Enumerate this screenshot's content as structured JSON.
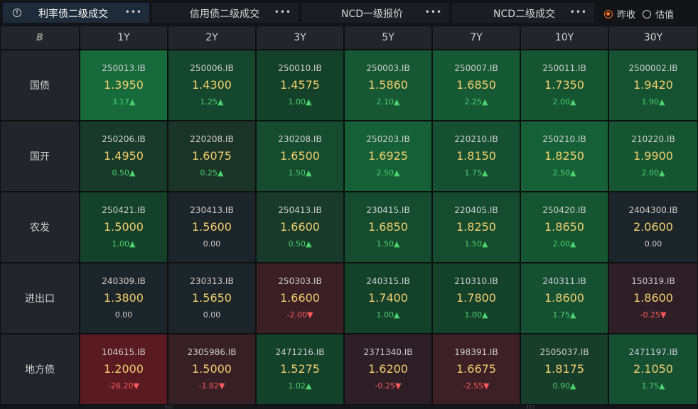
{
  "tabs": [
    {
      "label": "利率债二级成交",
      "active": true
    },
    {
      "label": "信用债二级成交",
      "active": false
    },
    {
      "label": "NCD一级报价",
      "active": false
    },
    {
      "label": "NCD二级成交",
      "active": false
    }
  ],
  "more_label": "•••",
  "info_glyph": "!",
  "radio": {
    "options": [
      {
        "label": "昨收",
        "selected": true
      },
      {
        "label": "估值",
        "selected": false
      }
    ]
  },
  "corner_logo": "B",
  "columns": [
    "1Y",
    "2Y",
    "3Y",
    "5Y",
    "7Y",
    "10Y",
    "30Y"
  ],
  "rows": [
    {
      "label": "国债",
      "cells": [
        {
          "code": "250013.IB",
          "value": "1.3950",
          "change": "3.17▲",
          "dir": "up",
          "bg": "#166a3c"
        },
        {
          "code": "250006.IB",
          "value": "1.4300",
          "change": "1.25▲",
          "dir": "up",
          "bg": "#14472d"
        },
        {
          "code": "250010.IB",
          "value": "1.4575",
          "change": "1.00▲",
          "dir": "up",
          "bg": "#14412a"
        },
        {
          "code": "250003.IB",
          "value": "1.5860",
          "change": "2.10▲",
          "dir": "up",
          "bg": "#165834"
        },
        {
          "code": "250007.IB",
          "value": "1.6850",
          "change": "2.25▲",
          "dir": "up",
          "bg": "#165a35"
        },
        {
          "code": "250011.IB",
          "value": "1.7350",
          "change": "2.00▲",
          "dir": "up",
          "bg": "#155532"
        },
        {
          "code": "2500002.IB",
          "value": "1.9420",
          "change": "1.90▲",
          "dir": "up",
          "bg": "#155231"
        }
      ]
    },
    {
      "label": "国开",
      "cells": [
        {
          "code": "250206.IB",
          "value": "1.4950",
          "change": "0.50▲",
          "dir": "up",
          "bg": "#183a2a"
        },
        {
          "code": "220208.IB",
          "value": "1.6075",
          "change": "0.25▲",
          "dir": "up",
          "bg": "#1a3428"
        },
        {
          "code": "230208.IB",
          "value": "1.6500",
          "change": "1.50▲",
          "dir": "up",
          "bg": "#154c2f"
        },
        {
          "code": "250203.IB",
          "value": "1.6925",
          "change": "2.50▲",
          "dir": "up",
          "bg": "#166038"
        },
        {
          "code": "220210.IB",
          "value": "1.8150",
          "change": "1.75▲",
          "dir": "up",
          "bg": "#155032"
        },
        {
          "code": "250210.IB",
          "value": "1.8250",
          "change": "2.50▲",
          "dir": "up",
          "bg": "#166038"
        },
        {
          "code": "210220.IB",
          "value": "1.9900",
          "change": "2.00▲",
          "dir": "up",
          "bg": "#155532"
        }
      ]
    },
    {
      "label": "农发",
      "cells": [
        {
          "code": "250421.IB",
          "value": "1.5000",
          "change": "1.00▲",
          "dir": "up",
          "bg": "#14412a"
        },
        {
          "code": "230413.IB",
          "value": "1.5600",
          "change": "0.00",
          "dir": "flat",
          "bg": "#1c2529"
        },
        {
          "code": "250413.IB",
          "value": "1.6600",
          "change": "0.50▲",
          "dir": "up",
          "bg": "#183a2a"
        },
        {
          "code": "230415.IB",
          "value": "1.6850",
          "change": "1.50▲",
          "dir": "up",
          "bg": "#154c2f"
        },
        {
          "code": "220405.IB",
          "value": "1.8250",
          "change": "1.50▲",
          "dir": "up",
          "bg": "#154c2f"
        },
        {
          "code": "250420.IB",
          "value": "1.8650",
          "change": "2.00▲",
          "dir": "up",
          "bg": "#155532"
        },
        {
          "code": "2404300.IB",
          "value": "2.0600",
          "change": "0.00",
          "dir": "flat",
          "bg": "#1c2529"
        }
      ]
    },
    {
      "label": "进出口",
      "cells": [
        {
          "code": "240309.IB",
          "value": "1.3800",
          "change": "0.00",
          "dir": "flat",
          "bg": "#1c2529"
        },
        {
          "code": "230313.IB",
          "value": "1.5650",
          "change": "0.00",
          "dir": "flat",
          "bg": "#1c2529"
        },
        {
          "code": "250303.IB",
          "value": "1.6600",
          "change": "-2.00▼",
          "dir": "down",
          "bg": "#3b1f26"
        },
        {
          "code": "240315.IB",
          "value": "1.7400",
          "change": "1.00▲",
          "dir": "up",
          "bg": "#14412a"
        },
        {
          "code": "210310.IB",
          "value": "1.7800",
          "change": "1.00▲",
          "dir": "up",
          "bg": "#14412a"
        },
        {
          "code": "240311.IB",
          "value": "1.8600",
          "change": "1.75▲",
          "dir": "up",
          "bg": "#155032"
        },
        {
          "code": "150319.IB",
          "value": "1.8600",
          "change": "-0.25▼",
          "dir": "down",
          "bg": "#2d1f25"
        }
      ]
    },
    {
      "label": "地方债",
      "cells": [
        {
          "code": "104615.IB",
          "value": "1.2000",
          "change": "-26.20▼",
          "dir": "down",
          "bg": "#5a1a22"
        },
        {
          "code": "2305986.IB",
          "value": "1.5000",
          "change": "-1.82▼",
          "dir": "down",
          "bg": "#371f26"
        },
        {
          "code": "2471216.IB",
          "value": "1.5275",
          "change": "1.02▲",
          "dir": "up",
          "bg": "#14412a"
        },
        {
          "code": "2371340.IB",
          "value": "1.6200",
          "change": "-0.25▼",
          "dir": "down",
          "bg": "#2d1f25"
        },
        {
          "code": "198391.IB",
          "value": "1.6675",
          "change": "-2.55▼",
          "dir": "down",
          "bg": "#3d1f26"
        },
        {
          "code": "2505037.IB",
          "value": "1.8175",
          "change": "0.90▲",
          "dir": "up",
          "bg": "#173e2a"
        },
        {
          "code": "2471197.IB",
          "value": "2.1050",
          "change": "1.75▲",
          "dir": "up",
          "bg": "#155032"
        }
      ]
    }
  ]
}
